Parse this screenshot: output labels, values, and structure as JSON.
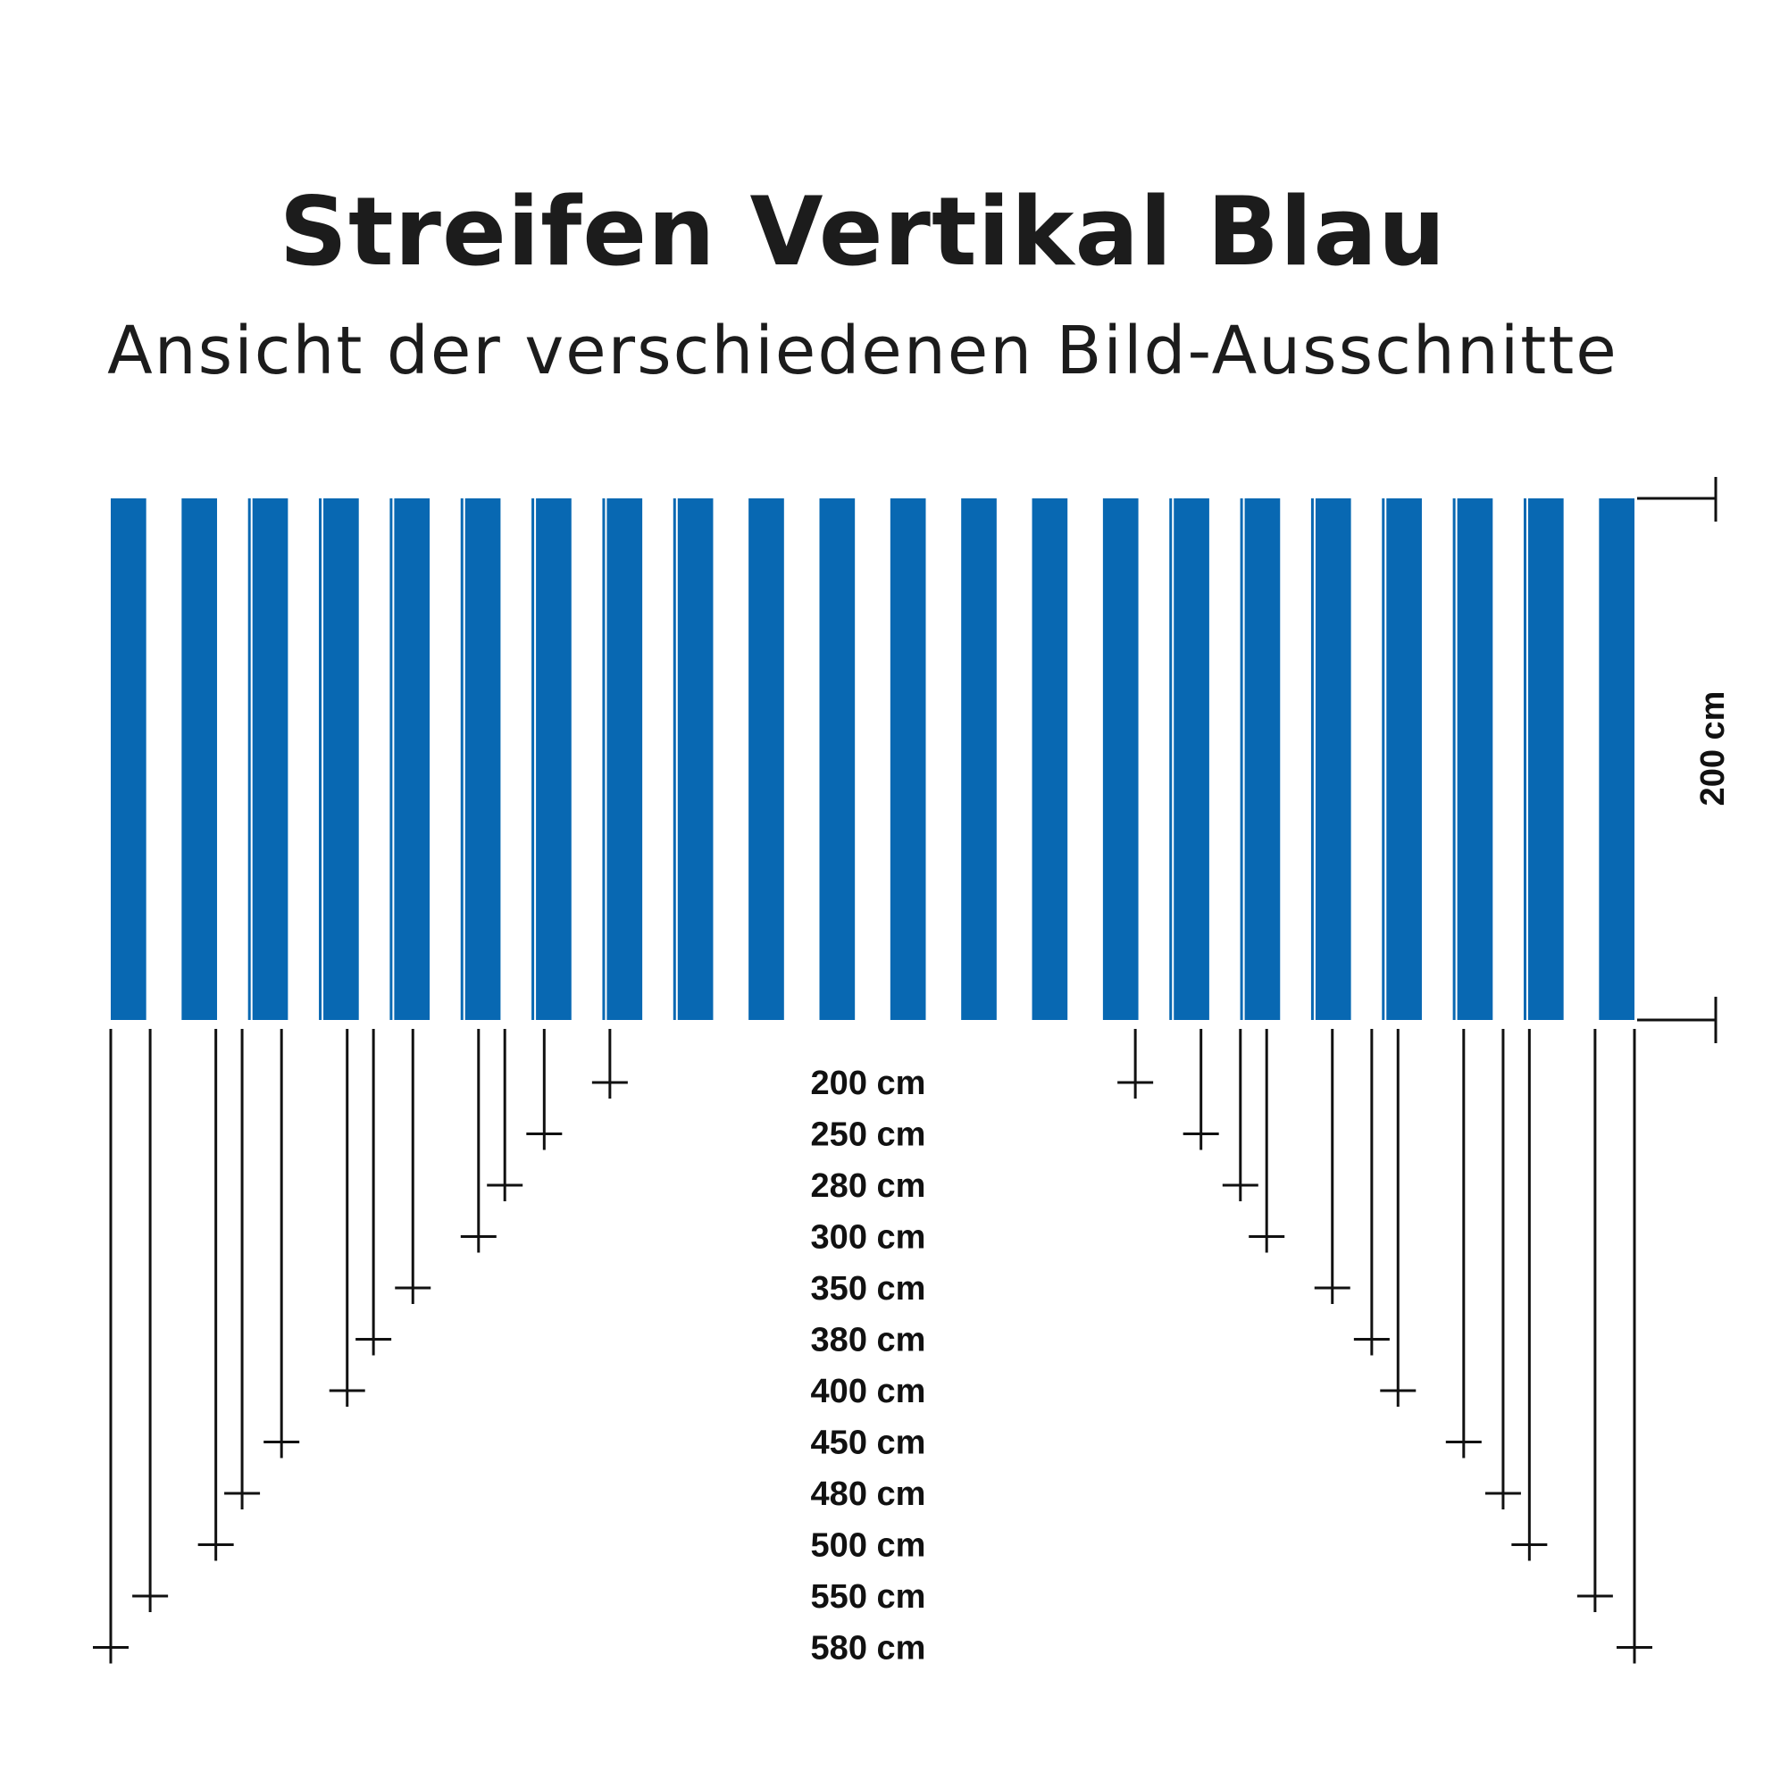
{
  "title": "Streifen Vertikal Blau",
  "subtitle": "Ansicht der verschiedenen Bild-Ausschnitte",
  "colors": {
    "stripe": "#0868b2",
    "background": "#ffffff",
    "lines": "#111111"
  },
  "height_label": "200 cm",
  "width_labels": [
    "200 cm",
    "250 cm",
    "280 cm",
    "300 cm",
    "350 cm",
    "380 cm",
    "400 cm",
    "450 cm",
    "480 cm",
    "500 cm",
    "550 cm",
    "580 cm"
  ],
  "widths_cm": [
    200,
    250,
    280,
    300,
    350,
    380,
    400,
    450,
    480,
    500,
    550,
    580
  ],
  "full_width_cm": 580,
  "stripe_count": 22
}
